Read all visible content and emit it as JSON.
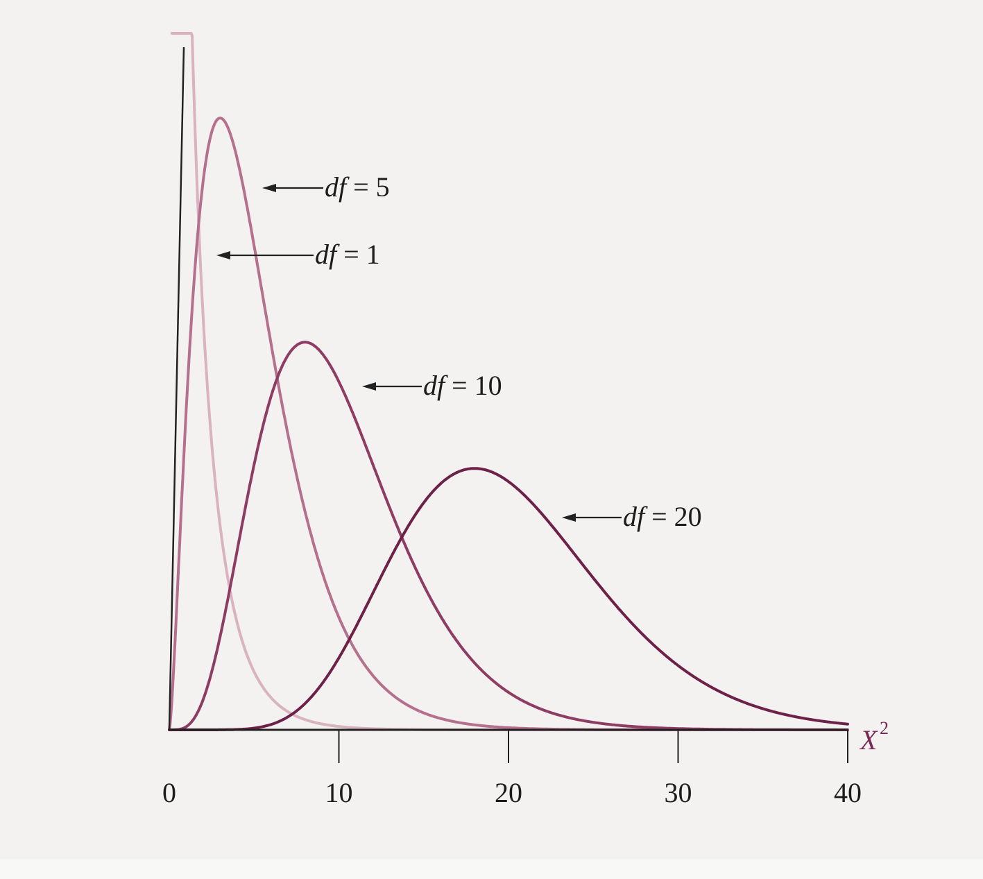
{
  "chart_data": {
    "type": "line",
    "title": "",
    "xlabel": "X",
    "xlabel_superscript": "2",
    "ylabel": "",
    "xlim": [
      0,
      40
    ],
    "x_ticks": [
      "0",
      "10",
      "20",
      "30",
      "40"
    ],
    "grid": false,
    "legend": "labels placed next to curves with arrows",
    "series": [
      {
        "name": "df = 1",
        "df": 1,
        "color": "#d9b3c0"
      },
      {
        "name": "df = 5",
        "df": 5,
        "color": "#b5708e"
      },
      {
        "name": "df = 10",
        "df": 10,
        "color": "#8f3c64"
      },
      {
        "name": "df = 20",
        "df": 20,
        "color": "#6e2148"
      }
    ]
  }
}
